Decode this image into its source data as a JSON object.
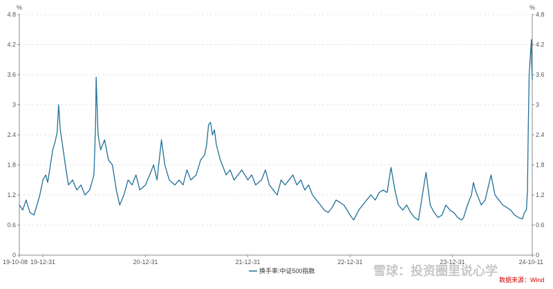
{
  "chart_data": {
    "type": "line",
    "series": [
      {
        "name": "换手率:中证500指数",
        "color": "#1f6e98",
        "points": [
          [
            "2019-10-08",
            1.0
          ],
          [
            "2019-10-20",
            0.9
          ],
          [
            "2019-11-01",
            1.1
          ],
          [
            "2019-11-15",
            0.85
          ],
          [
            "2019-11-29",
            0.8
          ],
          [
            "2019-12-10",
            1.0
          ],
          [
            "2019-12-20",
            1.2
          ],
          [
            "2019-12-31",
            1.5
          ],
          [
            "2020-01-10",
            1.6
          ],
          [
            "2020-01-17",
            1.45
          ],
          [
            "2020-02-04",
            2.1
          ],
          [
            "2020-02-12",
            2.25
          ],
          [
            "2020-02-20",
            2.45
          ],
          [
            "2020-02-25",
            3.0
          ],
          [
            "2020-03-02",
            2.5
          ],
          [
            "2020-03-10",
            2.2
          ],
          [
            "2020-03-20",
            1.8
          ],
          [
            "2020-03-31",
            1.4
          ],
          [
            "2020-04-15",
            1.5
          ],
          [
            "2020-04-30",
            1.3
          ],
          [
            "2020-05-15",
            1.4
          ],
          [
            "2020-05-29",
            1.2
          ],
          [
            "2020-06-15",
            1.3
          ],
          [
            "2020-06-30",
            1.6
          ],
          [
            "2020-07-06",
            2.6
          ],
          [
            "2020-07-08",
            3.55
          ],
          [
            "2020-07-10",
            3.2
          ],
          [
            "2020-07-15",
            2.4
          ],
          [
            "2020-07-24",
            2.1
          ],
          [
            "2020-08-07",
            2.3
          ],
          [
            "2020-08-21",
            1.9
          ],
          [
            "2020-09-04",
            1.8
          ],
          [
            "2020-09-18",
            1.3
          ],
          [
            "2020-09-30",
            1.0
          ],
          [
            "2020-10-15",
            1.2
          ],
          [
            "2020-10-30",
            1.5
          ],
          [
            "2020-11-13",
            1.4
          ],
          [
            "2020-11-27",
            1.6
          ],
          [
            "2020-12-11",
            1.3
          ],
          [
            "2020-12-31",
            1.4
          ],
          [
            "2021-01-15",
            1.6
          ],
          [
            "2021-01-29",
            1.8
          ],
          [
            "2021-02-10",
            1.5
          ],
          [
            "2021-02-26",
            2.3
          ],
          [
            "2021-03-10",
            1.8
          ],
          [
            "2021-03-26",
            1.5
          ],
          [
            "2021-04-15",
            1.4
          ],
          [
            "2021-04-30",
            1.5
          ],
          [
            "2021-05-14",
            1.4
          ],
          [
            "2021-05-28",
            1.7
          ],
          [
            "2021-06-11",
            1.5
          ],
          [
            "2021-06-30",
            1.6
          ],
          [
            "2021-07-16",
            1.9
          ],
          [
            "2021-07-30",
            2.0
          ],
          [
            "2021-08-06",
            2.2
          ],
          [
            "2021-08-13",
            2.6
          ],
          [
            "2021-08-20",
            2.65
          ],
          [
            "2021-08-27",
            2.4
          ],
          [
            "2021-09-03",
            2.5
          ],
          [
            "2021-09-10",
            2.2
          ],
          [
            "2021-09-24",
            1.9
          ],
          [
            "2021-10-15",
            1.6
          ],
          [
            "2021-10-29",
            1.7
          ],
          [
            "2021-11-12",
            1.5
          ],
          [
            "2021-11-26",
            1.6
          ],
          [
            "2021-12-10",
            1.7
          ],
          [
            "2021-12-31",
            1.5
          ],
          [
            "2022-01-14",
            1.6
          ],
          [
            "2022-01-28",
            1.4
          ],
          [
            "2022-02-18",
            1.5
          ],
          [
            "2022-03-04",
            1.7
          ],
          [
            "2022-03-18",
            1.4
          ],
          [
            "2022-04-01",
            1.3
          ],
          [
            "2022-04-15",
            1.2
          ],
          [
            "2022-04-29",
            1.5
          ],
          [
            "2022-05-13",
            1.4
          ],
          [
            "2022-05-27",
            1.5
          ],
          [
            "2022-06-10",
            1.6
          ],
          [
            "2022-06-24",
            1.4
          ],
          [
            "2022-07-08",
            1.5
          ],
          [
            "2022-07-22",
            1.3
          ],
          [
            "2022-08-05",
            1.4
          ],
          [
            "2022-08-19",
            1.2
          ],
          [
            "2022-09-02",
            1.1
          ],
          [
            "2022-09-16",
            1.0
          ],
          [
            "2022-09-30",
            0.9
          ],
          [
            "2022-10-14",
            0.85
          ],
          [
            "2022-10-28",
            0.95
          ],
          [
            "2022-11-11",
            1.1
          ],
          [
            "2022-11-25",
            1.05
          ],
          [
            "2022-12-09",
            1.0
          ],
          [
            "2022-12-31",
            0.8
          ],
          [
            "2023-01-13",
            0.7
          ],
          [
            "2023-01-31",
            0.9
          ],
          [
            "2023-02-14",
            1.0
          ],
          [
            "2023-02-28",
            1.1
          ],
          [
            "2023-03-15",
            1.2
          ],
          [
            "2023-03-31",
            1.1
          ],
          [
            "2023-04-14",
            1.25
          ],
          [
            "2023-04-28",
            1.3
          ],
          [
            "2023-05-12",
            1.25
          ],
          [
            "2023-05-26",
            1.75
          ],
          [
            "2023-06-09",
            1.3
          ],
          [
            "2023-06-21",
            1.0
          ],
          [
            "2023-07-07",
            0.9
          ],
          [
            "2023-07-21",
            1.0
          ],
          [
            "2023-08-04",
            0.85
          ],
          [
            "2023-08-18",
            0.75
          ],
          [
            "2023-09-01",
            0.7
          ],
          [
            "2023-09-15",
            1.2
          ],
          [
            "2023-09-28",
            1.65
          ],
          [
            "2023-10-13",
            1.0
          ],
          [
            "2023-10-27",
            0.85
          ],
          [
            "2023-11-10",
            0.75
          ],
          [
            "2023-11-24",
            0.8
          ],
          [
            "2023-12-08",
            1.0
          ],
          [
            "2023-12-22",
            0.9
          ],
          [
            "2024-01-05",
            0.85
          ],
          [
            "2024-01-19",
            0.75
          ],
          [
            "2024-02-02",
            0.7
          ],
          [
            "2024-02-09",
            0.75
          ],
          [
            "2024-02-23",
            1.0
          ],
          [
            "2024-03-08",
            1.2
          ],
          [
            "2024-03-15",
            1.45
          ],
          [
            "2024-03-22",
            1.3
          ],
          [
            "2024-04-12",
            1.0
          ],
          [
            "2024-04-26",
            1.1
          ],
          [
            "2024-05-17",
            1.6
          ],
          [
            "2024-05-31",
            1.2
          ],
          [
            "2024-06-14",
            1.1
          ],
          [
            "2024-06-28",
            1.0
          ],
          [
            "2024-07-12",
            0.95
          ],
          [
            "2024-07-26",
            0.9
          ],
          [
            "2024-08-09",
            0.8
          ],
          [
            "2024-08-23",
            0.75
          ],
          [
            "2024-09-06",
            0.72
          ],
          [
            "2024-09-13",
            0.85
          ],
          [
            "2024-09-20",
            0.9
          ],
          [
            "2024-09-24",
            1.3
          ],
          [
            "2024-09-27",
            2.6
          ],
          [
            "2024-09-30",
            3.6
          ],
          [
            "2024-10-08",
            4.3
          ],
          [
            "2024-10-09",
            3.8
          ],
          [
            "2024-10-10",
            3.7
          ],
          [
            "2024-10-11",
            3.5
          ]
        ]
      }
    ],
    "x_range": [
      "2019-10-08",
      "2024-10-11"
    ],
    "x_tick_labels": [
      [
        "2019-10-08",
        "19-10-08"
      ],
      [
        "2019-12-31",
        "19-12-31"
      ],
      [
        "2020-12-31",
        "20-12-31"
      ],
      [
        "2021-12-31",
        "21-12-31"
      ],
      [
        "2022-12-31",
        "22-12-31"
      ],
      [
        "2023-12-31",
        "23-12-31"
      ],
      [
        "2024-10-11",
        "24-10-11"
      ]
    ],
    "y_ticks": [
      "0",
      "0.6",
      "1.2",
      "1.8",
      "2.4",
      "3",
      "3.6",
      "4.2",
      "4.8"
    ],
    "ylim": [
      0,
      4.8
    ],
    "y_unit_left": "%",
    "y_unit_right": "%",
    "legend_position": "bottom-center",
    "grid": true
  },
  "source_text": "数据来源：Wind",
  "watermark_text": "雪球：投资圈里说心学"
}
